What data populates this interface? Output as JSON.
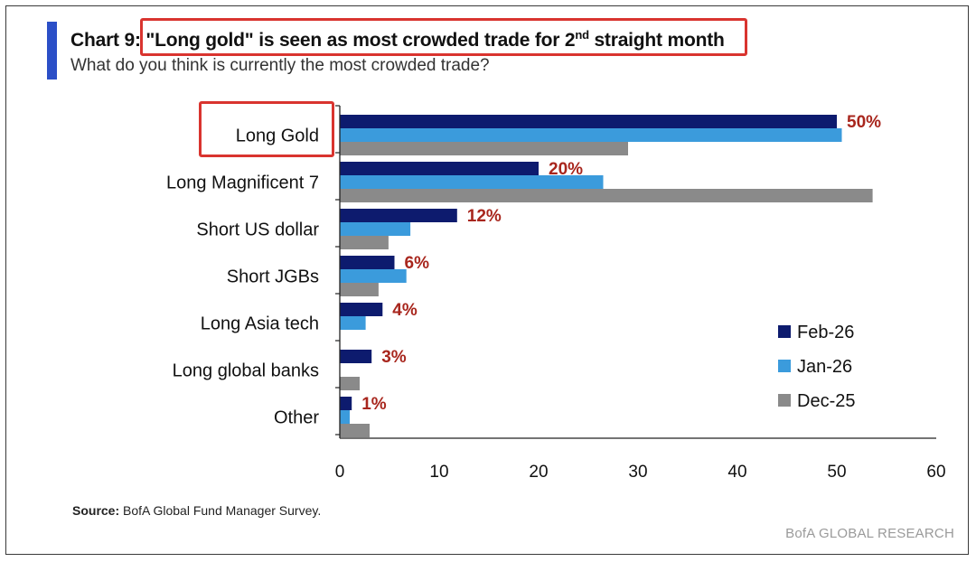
{
  "header": {
    "chart_num": "Chart 9",
    "title_main": "\"Long gold\" is seen as most crowded trade for 2",
    "title_sup": "nd",
    "title_end": " straight month",
    "subtitle": "What do you think is currently the most crowded trade?"
  },
  "footer": {
    "source_label": "Source:",
    "source_text": " BofA Global Fund Manager Survey.",
    "brand": "BofA GLOBAL RESEARCH"
  },
  "chart_data": {
    "type": "bar",
    "orientation": "horizontal",
    "categories": [
      "Long Gold",
      "Long Magnificent 7",
      "Short US dollar",
      "Short JGBs",
      "Long Asia tech",
      "Long global banks",
      "Other"
    ],
    "series": [
      {
        "name": "Feb-26",
        "color": "#0d1b6e",
        "values": [
          50,
          20,
          11.8,
          5.5,
          4.3,
          3.2,
          1.2
        ]
      },
      {
        "name": "Jan-26",
        "color": "#3b9bdc",
        "values": [
          50.5,
          26.5,
          7.1,
          6.7,
          2.6,
          0,
          1.0
        ]
      },
      {
        "name": "Dec-25",
        "color": "#8a8a8a",
        "values": [
          29,
          53.6,
          4.9,
          3.9,
          0,
          2.0,
          3.0
        ]
      }
    ],
    "data_labels": [
      "50%",
      "20%",
      "12%",
      "6%",
      "4%",
      "3%",
      "1%"
    ],
    "xlim": [
      0,
      60
    ],
    "xticks": [
      "0",
      "10",
      "20",
      "30",
      "40",
      "50",
      "60"
    ],
    "legend_position": "bottom-right",
    "grid": false
  }
}
